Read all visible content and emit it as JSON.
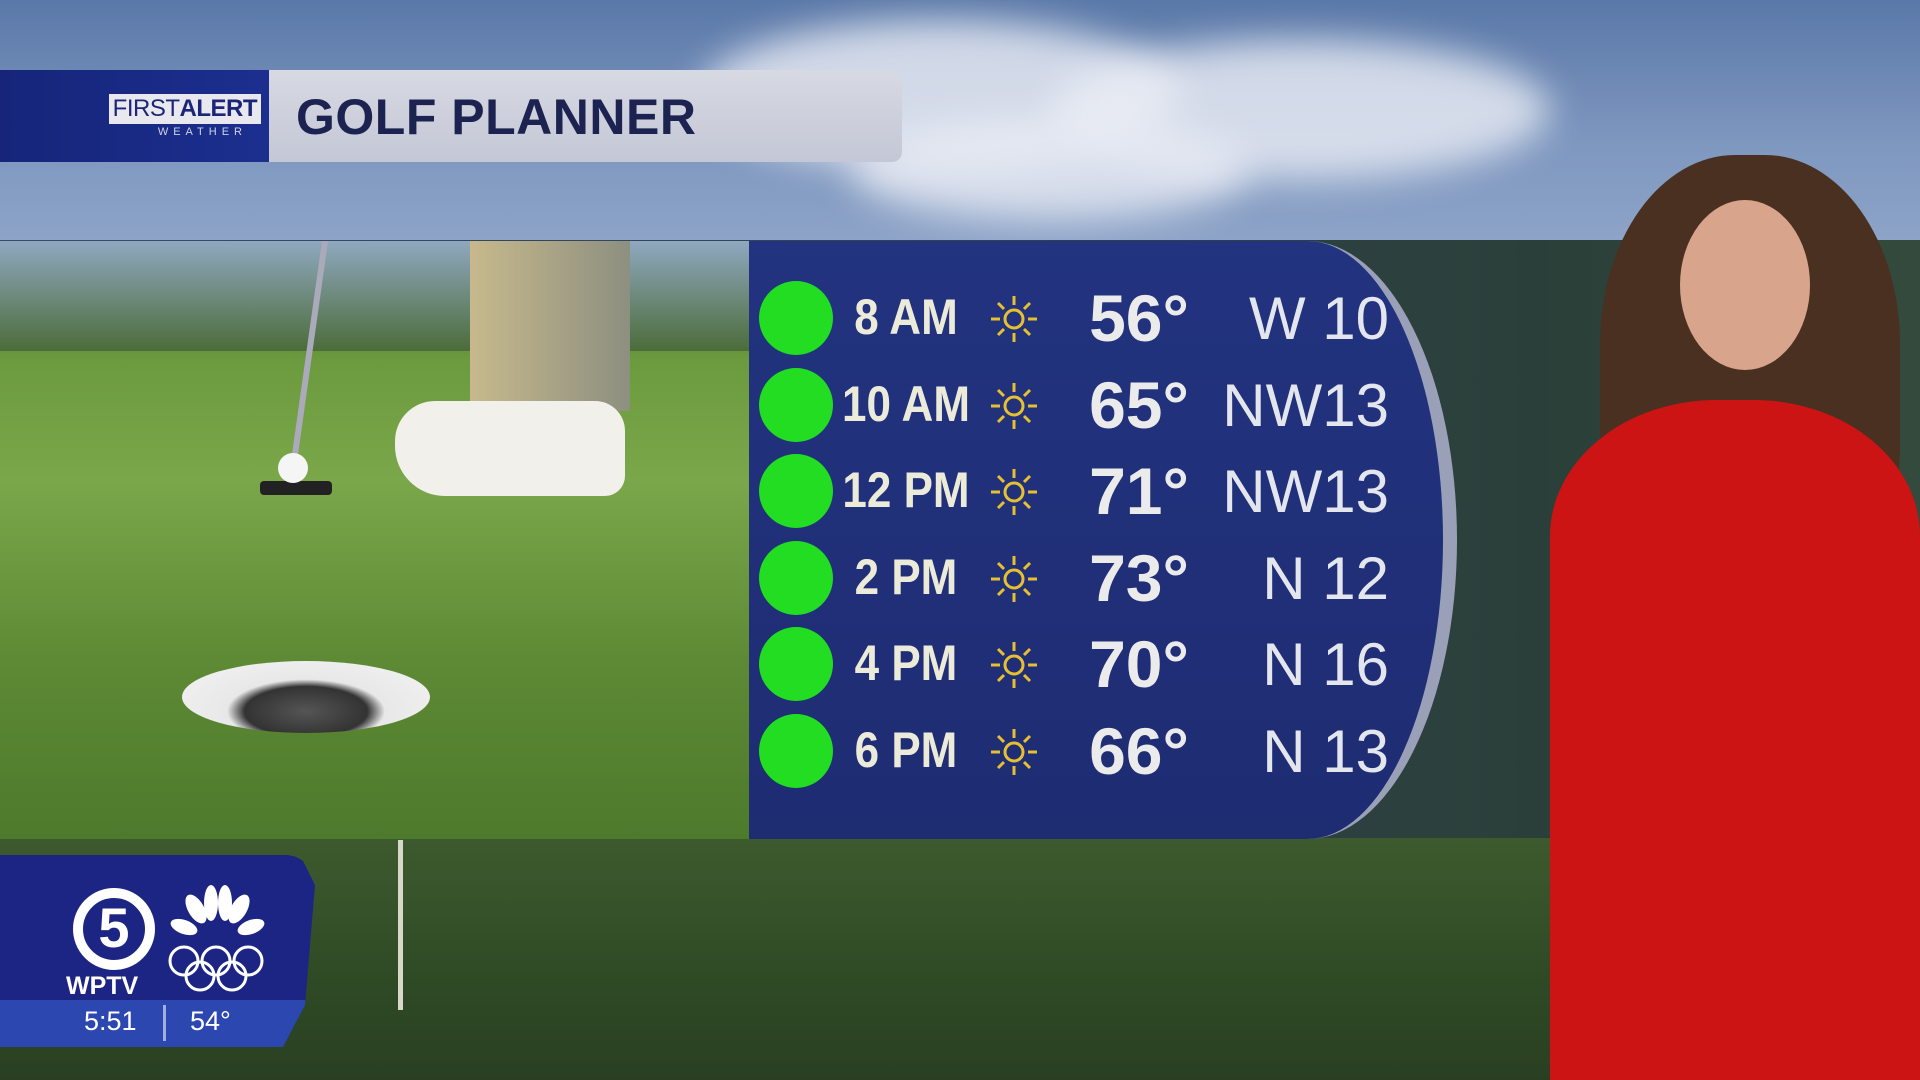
{
  "header": {
    "brand_top_light": "FIRST",
    "brand_top_bold": "ALERT",
    "brand_sub": "WEATHER",
    "title": "GOLF PLANNER"
  },
  "forecast": {
    "icon": "sun-icon",
    "rows": [
      {
        "status": "green",
        "time": "8 AM",
        "temp": "56°",
        "wind": "W 10"
      },
      {
        "status": "green",
        "time": "10 AM",
        "temp": "65°",
        "wind": "NW13"
      },
      {
        "status": "green",
        "time": "12 PM",
        "temp": "71°",
        "wind": "NW13"
      },
      {
        "status": "green",
        "time": "2 PM",
        "temp": "73°",
        "wind": "N 12"
      },
      {
        "status": "green",
        "time": "4 PM",
        "temp": "70°",
        "wind": "N 16"
      },
      {
        "status": "green",
        "time": "6 PM",
        "temp": "66°",
        "wind": "N 13"
      }
    ]
  },
  "bug": {
    "channel": "5",
    "station": "WPTV",
    "time": "5:51",
    "temp": "54°"
  },
  "colors": {
    "panel": "#22337f",
    "good": "#22dd22",
    "sun": "#e6c030",
    "brand": "#1c2583"
  }
}
